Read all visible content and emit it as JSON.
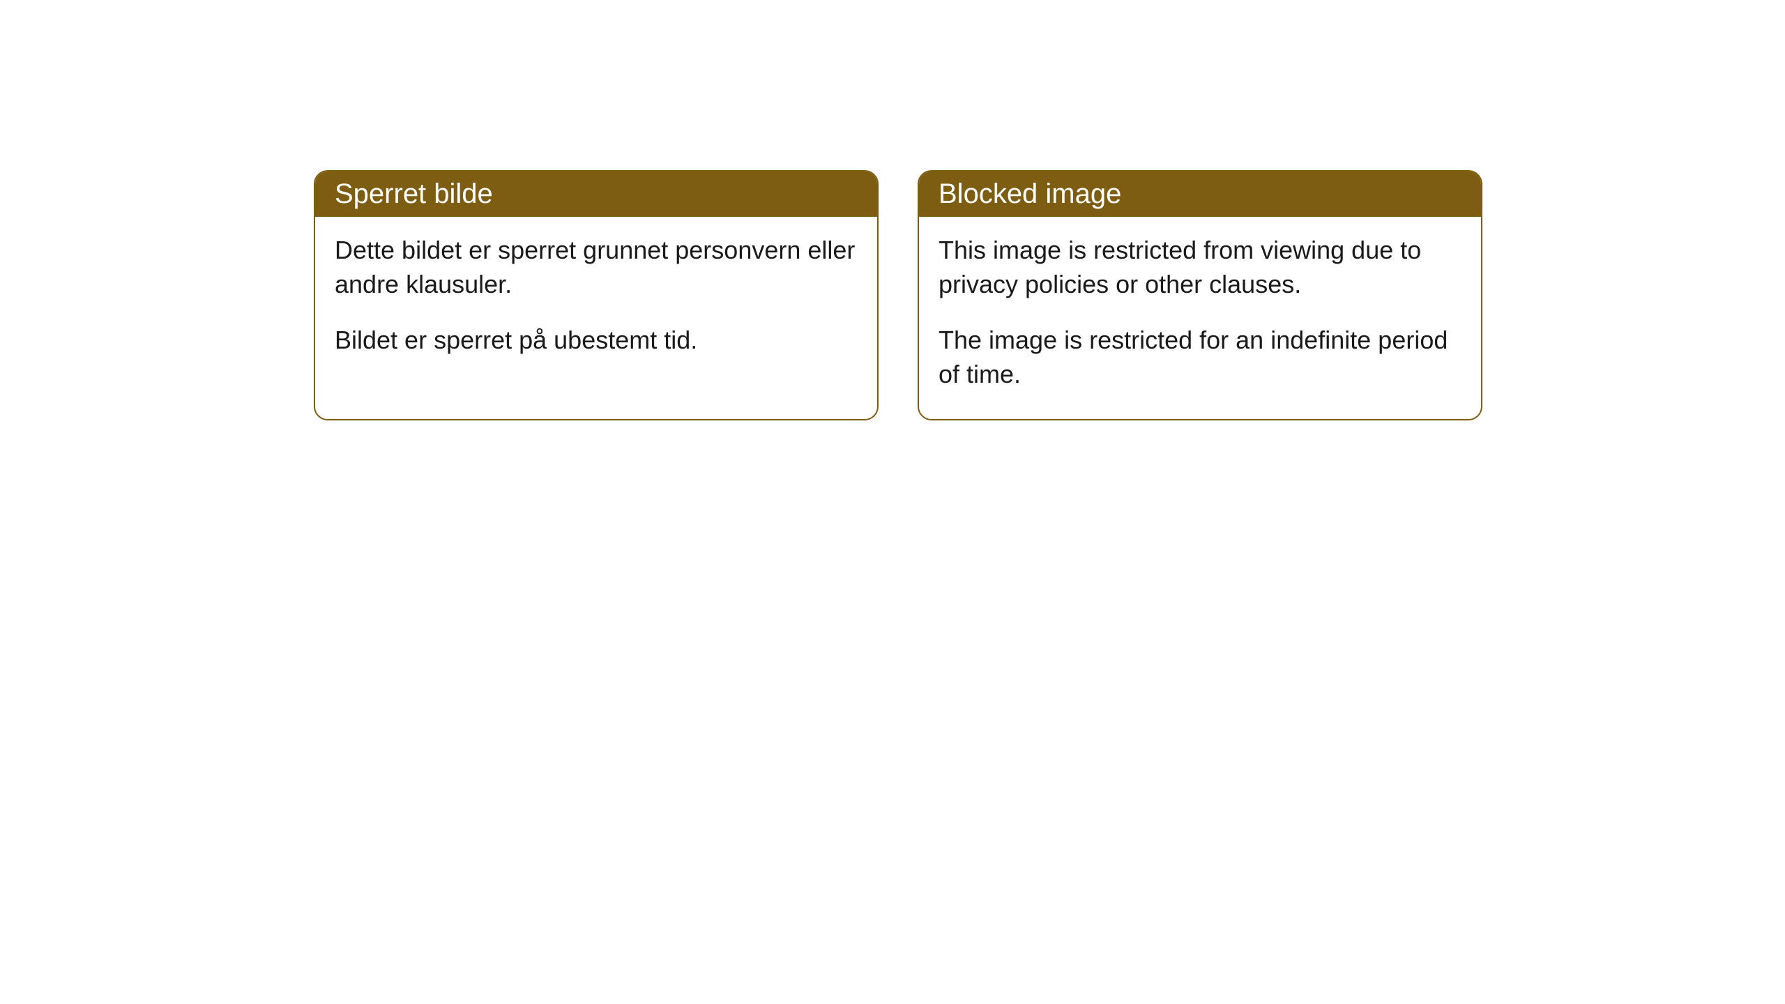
{
  "cards": [
    {
      "title": "Sperret bilde",
      "paragraph1": "Dette bildet er sperret grunnet personvern eller andre klausuler.",
      "paragraph2": "Bildet er sperret på ubestemt tid."
    },
    {
      "title": "Blocked image",
      "paragraph1": "This image is restricted from viewing due to privacy policies or other clauses.",
      "paragraph2": "The image is restricted for an indefinite period of time."
    }
  ],
  "styling": {
    "header_background_color": "#7d5d12",
    "header_text_color": "#ffffff",
    "border_color": "#7d5d12",
    "body_text_color": "#1a1a1a",
    "card_background_color": "#ffffff",
    "page_background_color": "#ffffff",
    "border_radius": 20,
    "header_fontsize": 40,
    "body_fontsize": 36
  }
}
